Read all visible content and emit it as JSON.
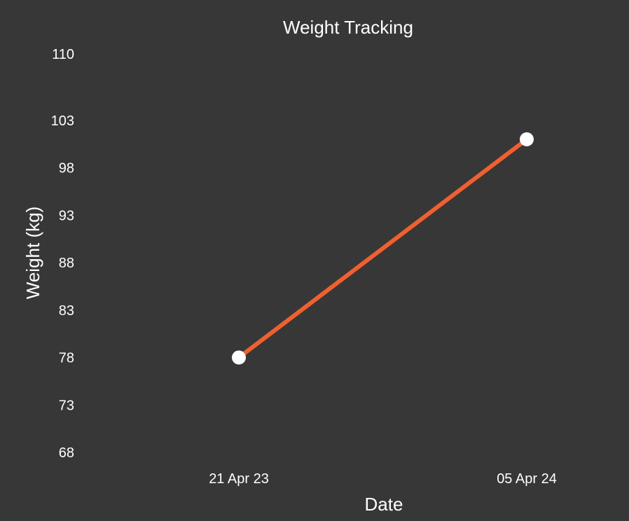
{
  "chart_data": {
    "type": "line",
    "title": "Weight Tracking",
    "xlabel": "Date",
    "ylabel": "Weight (kg)",
    "categories": [
      "21 Apr 23",
      "05 Apr 24"
    ],
    "series": [
      {
        "values": [
          78,
          101
        ]
      }
    ],
    "y_ticks": [
      "110",
      "103",
      "98",
      "93",
      "88",
      "83",
      "78",
      "73",
      "68"
    ],
    "y_tick_values": [
      110,
      103,
      98,
      93,
      88,
      83,
      78,
      73,
      68
    ],
    "ylim": [
      68,
      110
    ],
    "grid": false,
    "legend": "none",
    "colors": {
      "background": "#373737",
      "line": "#F0602F",
      "marker": "#FFFFFF",
      "text": "#FFFFFF"
    }
  }
}
